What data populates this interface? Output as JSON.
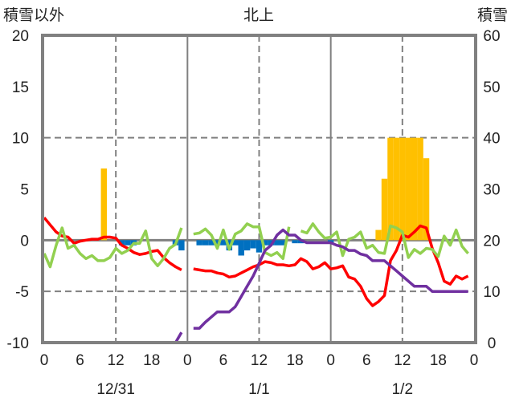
{
  "chart_data": {
    "type": "bar+line",
    "title": "北上",
    "left_axis_label": "積雪以外",
    "right_axis_label": "積雪",
    "left_ylim": [
      -10,
      20
    ],
    "left_ticks": [
      20,
      15,
      10,
      5,
      0,
      -5,
      -10
    ],
    "right_ylim": [
      0,
      60
    ],
    "right_ticks": [
      60,
      50,
      40,
      30,
      20,
      10,
      0
    ],
    "x_tick_labels": [
      "0",
      "6",
      "12",
      "18",
      "0",
      "6",
      "12",
      "18",
      "0",
      "6",
      "12",
      "18",
      "0"
    ],
    "dates": [
      "12/31",
      "1/1",
      "1/2"
    ],
    "hours_per_day": 24,
    "colors": {
      "temperature": "#ff0000",
      "other": "#92d050",
      "snow_depth": "#7030a0",
      "snowfall": "#ffc000",
      "negative_bar": "#0070c0",
      "axis": "#808080"
    },
    "series": [
      {
        "name": "temperature",
        "type": "line",
        "axis": "left",
        "color": "#ff0000",
        "values": [
          [
            2.2,
            1.5,
            0.8,
            0.4,
            0.3,
            -0.3,
            -0.1,
            0,
            0.1,
            0.1,
            0.3,
            0.3,
            0.2,
            -0.5,
            -0.8,
            -1.2,
            -1.4,
            -1.3,
            -1.1,
            -1.0,
            -1.7,
            -2.2,
            -2.6,
            -2.9
          ],
          [
            null,
            -2.8,
            -2.9,
            -3.0,
            -3.0,
            -3.2,
            -3.3,
            -3.6,
            -3.5,
            -3.2,
            -2.9,
            -2.6,
            -2.4,
            -2.1,
            -2.2,
            -2.4,
            -2.4,
            -2.5,
            -2.4,
            -1.8,
            -2.1,
            -2.8,
            -2.6,
            -2.2
          ],
          [
            -2.8,
            -2.7,
            -2.5,
            -3.6,
            -3.8,
            -4.5,
            -5.7,
            -6.4,
            -6.0,
            -5.4,
            -2.0,
            -1.0,
            0.5,
            0.3,
            0.8,
            1.4,
            1.2,
            -0.8,
            -2.2,
            -4.0,
            -4.3,
            -3.5,
            -3.8,
            -3.5
          ]
        ]
      },
      {
        "name": "other",
        "type": "line",
        "axis": "left",
        "color": "#92d050",
        "values": [
          [
            -1.3,
            -2.6,
            -0.5,
            1.2,
            -0.8,
            -0.5,
            -1.3,
            -1.8,
            -1.5,
            -2.0,
            -2.0,
            -1.7,
            -0.8,
            -1.3,
            -1.0,
            -0.3,
            -0.3,
            0.9,
            -1.8,
            -2.5,
            -1.8,
            -0.8,
            -0.4,
            1.2
          ],
          [
            null,
            0.6,
            0.7,
            1.1,
            0.5,
            -0.8,
            1.0,
            -0.9,
            0.6,
            0.9,
            1.6,
            1.3,
            1.3,
            -1.2,
            -1.5,
            -1.2,
            -1.8,
            1.3,
            null,
            0.9,
            0.7,
            1.6,
            0.8,
            0.2
          ],
          [
            0.3,
            0.8,
            -1.5,
            0.1,
            0.3,
            0.8,
            -0.8,
            -0.5,
            -1.2,
            -1.3,
            1.4,
            1.2,
            0.8,
            -1.7,
            -0.9,
            -1.3,
            -0.8,
            -0.9,
            -1.6,
            0.4,
            -0.5,
            1.0,
            -0.6,
            -1.3
          ]
        ]
      },
      {
        "name": "snow_depth",
        "type": "line",
        "axis": "right",
        "color": "#7030a0",
        "values": [
          [
            0,
            0,
            0,
            0,
            0,
            0,
            0,
            0,
            0,
            0,
            0,
            0,
            0,
            0,
            0,
            0,
            0,
            0,
            0,
            0,
            0,
            0,
            0,
            2
          ],
          [
            null,
            2.8,
            2.8,
            4,
            5,
            6,
            6,
            6,
            7,
            9,
            11,
            13,
            15.5,
            18,
            19,
            21,
            22,
            21,
            21,
            20,
            19.5,
            19.5,
            19.5,
            19.5
          ],
          [
            19.5,
            19,
            18.7,
            18,
            18,
            17.3,
            17,
            16,
            16,
            16,
            15,
            14,
            13,
            12,
            11,
            11,
            11,
            10,
            10,
            10,
            10,
            10,
            10,
            10
          ]
        ]
      },
      {
        "name": "snowfall",
        "type": "bar",
        "axis": "left",
        "color": "#ffc000",
        "values": [
          [
            0,
            0,
            0,
            0,
            0,
            0,
            0,
            0,
            0,
            0,
            7,
            0,
            0,
            0,
            0,
            0,
            0,
            0,
            0,
            0,
            0,
            0,
            0,
            0
          ],
          [
            0,
            0,
            0,
            0,
            0,
            0,
            0,
            0,
            0,
            0,
            0,
            0,
            0,
            0,
            0,
            0,
            0,
            0,
            0,
            0,
            0,
            0,
            0,
            0
          ],
          [
            0,
            0,
            0,
            0,
            0,
            0,
            0,
            0,
            1,
            6,
            10,
            10,
            10,
            10,
            10,
            10,
            8,
            0,
            0,
            0,
            0,
            0,
            0,
            0
          ]
        ]
      },
      {
        "name": "negative",
        "type": "bar",
        "axis": "left",
        "color": "#0070c0",
        "values": [
          [
            0,
            0,
            0,
            0,
            0,
            0,
            0,
            0,
            0,
            0,
            0,
            0,
            0,
            -0.5,
            -0.5,
            -0.5,
            0,
            0,
            0,
            0,
            0,
            0,
            -0.5,
            -1.0
          ],
          [
            0,
            0,
            -0.5,
            -0.5,
            -0.5,
            -0.5,
            -0.5,
            -1.0,
            -0.5,
            -1.5,
            -1.0,
            -0.8,
            -1.2,
            -0.5,
            -0.5,
            -0.5,
            -0.5,
            0,
            -0.3,
            -0.3,
            0,
            0,
            0,
            0
          ],
          [
            -0.3,
            0,
            0,
            0,
            0,
            0,
            0,
            0,
            0,
            0,
            0,
            0,
            0,
            0,
            0,
            0,
            0,
            0,
            0,
            0,
            0,
            0,
            0,
            0
          ]
        ]
      }
    ]
  }
}
